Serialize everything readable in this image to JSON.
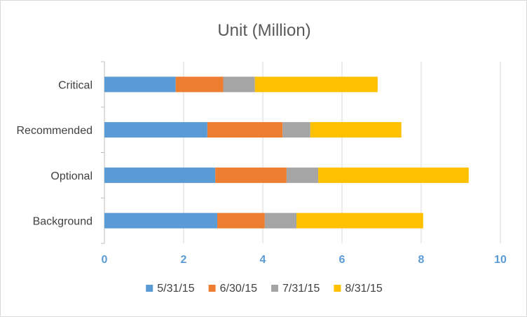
{
  "chart_data": {
    "type": "bar",
    "orientation": "horizontal",
    "stacked": true,
    "title": "Unit (Million)",
    "categories": [
      "Critical",
      "Recommended",
      "Optional",
      "Background"
    ],
    "series": [
      {
        "name": "5/31/15",
        "color": "#5b9bd5",
        "values": [
          1.8,
          2.6,
          2.8,
          2.85
        ]
      },
      {
        "name": "6/30/15",
        "color": "#ed7d31",
        "values": [
          1.2,
          1.9,
          1.8,
          1.2
        ]
      },
      {
        "name": "7/31/15",
        "color": "#a5a5a5",
        "values": [
          0.8,
          0.7,
          0.8,
          0.8
        ]
      },
      {
        "name": "8/31/15",
        "color": "#ffc000",
        "values": [
          3.1,
          2.3,
          3.8,
          3.2
        ]
      }
    ],
    "xlim": [
      0,
      10
    ],
    "x_ticks": [
      0,
      2,
      4,
      6,
      8,
      10
    ],
    "grid": "vertical",
    "legend": "bottom"
  }
}
